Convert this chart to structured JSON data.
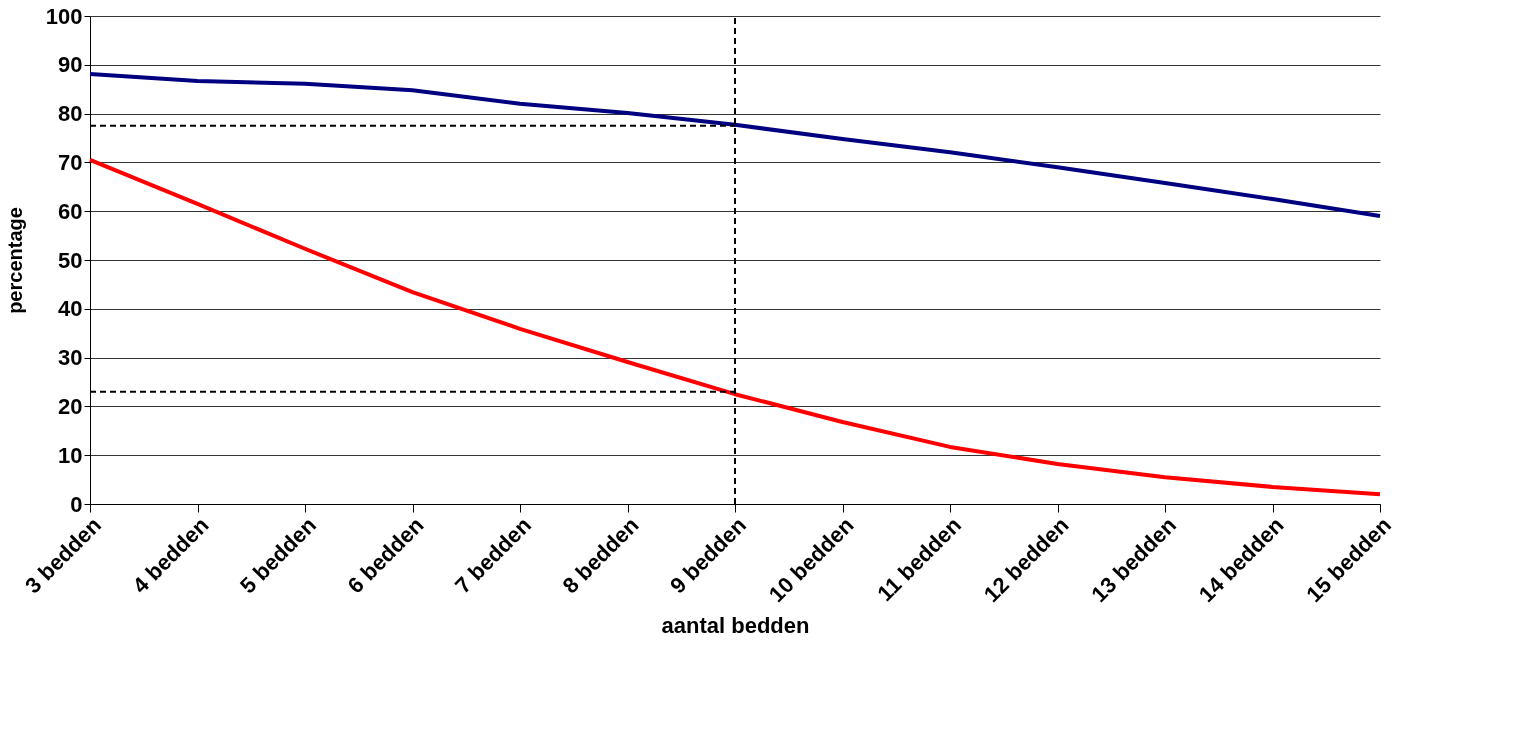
{
  "chart_data": {
    "type": "line",
    "xlabel": "aantal bedden",
    "ylabel": "percentage",
    "categories": [
      "3 bedden",
      "4 bedden",
      "5 bedden",
      "6 bedden",
      "7 bedden",
      "8 bedden",
      "9 bedden",
      "10 bedden",
      "11 bedden",
      "12 bedden",
      "13 bedden",
      "14 bedden",
      "15 bedden"
    ],
    "series": [
      {
        "color": "#000080",
        "values": [
          88.1,
          86.7,
          86.1,
          84.8,
          82.0,
          80.1,
          77.7,
          74.8,
          72.1,
          69.0,
          65.8,
          62.5,
          59.0
        ]
      },
      {
        "color": "#ff0000",
        "values": [
          70.5,
          61.5,
          52.3,
          43.4,
          35.9,
          29.1,
          22.5,
          16.8,
          11.7,
          8.2,
          5.5,
          3.5,
          2.0
        ]
      }
    ],
    "ylim": [
      0,
      100
    ],
    "yticks": [
      0,
      10,
      20,
      30,
      40,
      50,
      60,
      70,
      80,
      90,
      100
    ],
    "grid": "y",
    "legend": false,
    "marker": "none",
    "line_style": "solid",
    "ref_lines": [
      {
        "axis": "x",
        "value": "9 bedden",
        "color": "#000000",
        "line_style": "dashed"
      },
      {
        "axis": "y",
        "value": 77.5,
        "color": "#000000",
        "line_style": "dashed"
      },
      {
        "axis": "y",
        "value": 23,
        "color": "#000000",
        "line_style": "dashed"
      }
    ]
  }
}
